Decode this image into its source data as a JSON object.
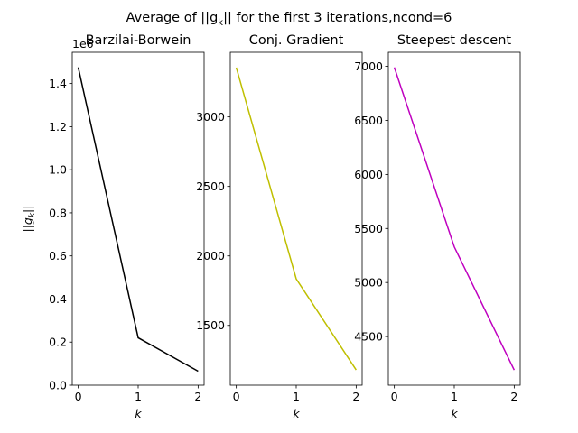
{
  "figure": {
    "suptitle_prefix": "Average of ||g",
    "suptitle_sub": "k",
    "suptitle_suffix": "|| for the first 3 iterations,ncond=6"
  },
  "chart_data": [
    {
      "type": "line",
      "title": "Barzilai-Borwein",
      "xlabel": "k",
      "ylabel_prefix": "||g",
      "ylabel_sub": "k",
      "ylabel_suffix": "||",
      "offset_text": "1e6",
      "x": [
        0,
        1,
        2
      ],
      "y": [
        1.475,
        0.22,
        0.065
      ],
      "xlim": [
        -0.1,
        2.1
      ],
      "ylim": [
        0,
        1.545
      ],
      "xticks": [
        0,
        1,
        2
      ],
      "yticks": [
        0.0,
        0.2,
        0.4,
        0.6,
        0.8,
        1.0,
        1.2,
        1.4
      ],
      "ytick_labels": [
        "0.0",
        "0.2",
        "0.4",
        "0.6",
        "0.8",
        "1.0",
        "1.2",
        "1.4"
      ],
      "color": "#000000",
      "grid": false
    },
    {
      "type": "line",
      "title": "Conj. Gradient",
      "xlabel": "k",
      "x": [
        0,
        1,
        2
      ],
      "y": [
        3355,
        1835,
        1180
      ],
      "xlim": [
        -0.1,
        2.1
      ],
      "ylim": [
        1070,
        3465
      ],
      "xticks": [
        0,
        1,
        2
      ],
      "yticks": [
        1500,
        2000,
        2500,
        3000
      ],
      "ytick_labels": [
        "1500",
        "2000",
        "2500",
        "3000"
      ],
      "color": "#bfbf00",
      "grid": false
    },
    {
      "type": "line",
      "title": "Steepest descent",
      "xlabel": "k",
      "x": [
        0,
        1,
        2
      ],
      "y": [
        6990,
        5330,
        4190
      ],
      "xlim": [
        -0.1,
        2.1
      ],
      "ylim": [
        4050,
        7130
      ],
      "xticks": [
        0,
        1,
        2
      ],
      "yticks": [
        4500,
        5000,
        5500,
        6000,
        6500,
        7000
      ],
      "ytick_labels": [
        "4500",
        "5000",
        "5500",
        "6000",
        "6500",
        "7000"
      ],
      "color": "#bf00bf",
      "grid": false
    }
  ]
}
